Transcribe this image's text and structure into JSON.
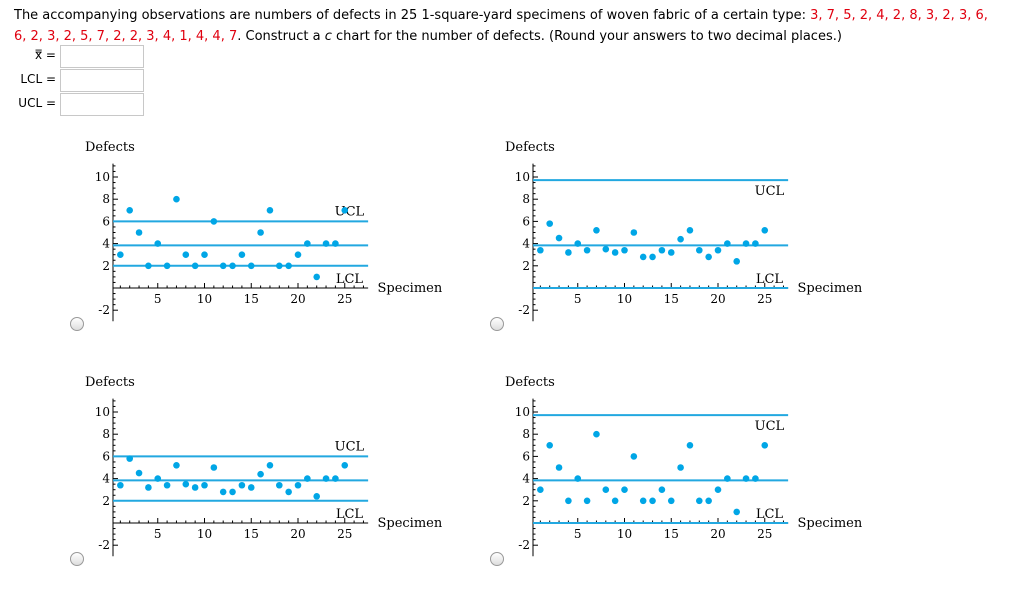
{
  "question": {
    "text_before": "The accompanying observations are numbers of defects in 25 1-square-yard specimens of woven fabric of a certain type: ",
    "data_line1": "3, 7, 5, 2, 4, 2, 8, 3, 2, 3, 6,",
    "data_line2": "6, 2, 3, 2, 5, 7, 2, 2, 3, 4, 1, 4, 4, 7",
    "text_after1": ". Construct a ",
    "italic_c": "c",
    "text_after2": " chart for the number of defects. (Round your answers to two decimal places.)"
  },
  "fields": [
    {
      "label": "x̿ =",
      "value": ""
    },
    {
      "label": "LCL =",
      "value": ""
    },
    {
      "label": "UCL =",
      "value": ""
    }
  ],
  "colors": {
    "series": "#00a6e6",
    "line": "#22a8e0",
    "question_data": "#e0000f"
  },
  "chart_common": {
    "ylabel": "Defects",
    "xlabel": "Specimen",
    "ucl_label": "UCL",
    "lcl_label": "LCL",
    "xticks": [
      5,
      10,
      15,
      20,
      25
    ],
    "yticks": [
      -2,
      2,
      4,
      6,
      8,
      10
    ]
  },
  "chart_data": [
    {
      "type": "scatter",
      "ylabel": "Defects",
      "xlabel": "Specimen",
      "x": [
        1,
        2,
        3,
        4,
        5,
        6,
        7,
        8,
        9,
        10,
        11,
        12,
        13,
        14,
        15,
        16,
        17,
        18,
        19,
        20,
        21,
        22,
        23,
        24,
        25
      ],
      "y": [
        3,
        7,
        5,
        2,
        4,
        2,
        8,
        3,
        2,
        3,
        6,
        2,
        2,
        3,
        2,
        5,
        7,
        2,
        2,
        3,
        4,
        1,
        4,
        4,
        7
      ],
      "ucl": 6,
      "center": 3.84,
      "lcl": 2
    },
    {
      "type": "scatter",
      "ylabel": "Defects",
      "xlabel": "Specimen",
      "x": [
        1,
        2,
        3,
        4,
        5,
        6,
        7,
        8,
        9,
        10,
        11,
        12,
        13,
        14,
        15,
        16,
        17,
        18,
        19,
        20,
        21,
        22,
        23,
        24,
        25
      ],
      "y": [
        3.4,
        5.8,
        4.5,
        3.2,
        4,
        3.4,
        5.2,
        3.5,
        3.2,
        3.4,
        5,
        2.8,
        2.8,
        3.4,
        3.2,
        4.4,
        5.2,
        3.4,
        2.8,
        3.4,
        4,
        2.4,
        4,
        4,
        5.2
      ],
      "ucl": 9.72,
      "center": 3.84,
      "lcl": 0
    },
    {
      "type": "scatter",
      "ylabel": "Defects",
      "xlabel": "Specimen",
      "x": [
        1,
        2,
        3,
        4,
        5,
        6,
        7,
        8,
        9,
        10,
        11,
        12,
        13,
        14,
        15,
        16,
        17,
        18,
        19,
        20,
        21,
        22,
        23,
        24,
        25
      ],
      "y": [
        3.4,
        5.8,
        4.5,
        3.2,
        4,
        3.4,
        5.2,
        3.5,
        3.2,
        3.4,
        5,
        2.8,
        2.8,
        3.4,
        3.2,
        4.4,
        5.2,
        3.4,
        2.8,
        3.4,
        4,
        2.4,
        4,
        4,
        5.2
      ],
      "ucl": 6,
      "center": 3.84,
      "lcl": 2
    },
    {
      "type": "scatter",
      "ylabel": "Defects",
      "xlabel": "Specimen",
      "x": [
        1,
        2,
        3,
        4,
        5,
        6,
        7,
        8,
        9,
        10,
        11,
        12,
        13,
        14,
        15,
        16,
        17,
        18,
        19,
        20,
        21,
        22,
        23,
        24,
        25
      ],
      "y": [
        3,
        7,
        5,
        2,
        4,
        2,
        8,
        3,
        2,
        3,
        6,
        2,
        2,
        3,
        2,
        5,
        7,
        2,
        2,
        3,
        4,
        1,
        4,
        4,
        7
      ],
      "ucl": 9.72,
      "center": 3.84,
      "lcl": 0
    }
  ]
}
